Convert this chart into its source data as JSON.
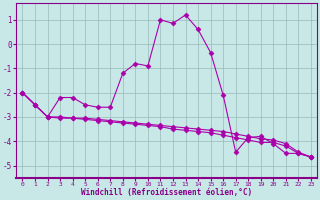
{
  "xlabel": "Windchill (Refroidissement éolien,°C)",
  "ylabel": "",
  "bg_color": "#c8e8e8",
  "grid_color": "#9ababa",
  "line_color": "#aa00aa",
  "spine_color": "#880088",
  "tick_color": "#880088",
  "label_color": "#880088",
  "xlim": [
    -0.5,
    23.5
  ],
  "ylim": [
    -5.5,
    1.7
  ],
  "yticks": [
    -5,
    -4,
    -3,
    -2,
    -1,
    0,
    1
  ],
  "xticks": [
    0,
    1,
    2,
    3,
    4,
    5,
    6,
    7,
    8,
    9,
    10,
    11,
    12,
    13,
    14,
    15,
    16,
    17,
    18,
    19,
    20,
    21,
    22,
    23
  ],
  "line1_x": [
    0,
    1,
    2,
    3,
    4,
    5,
    6,
    7,
    8,
    9,
    10,
    11,
    12,
    13,
    14,
    15,
    16,
    17,
    18,
    19,
    20,
    21,
    22,
    23
  ],
  "line1_y": [
    -2.0,
    -2.5,
    -3.0,
    -2.2,
    -2.2,
    -2.5,
    -2.6,
    -2.6,
    -1.2,
    -0.8,
    -0.9,
    1.0,
    0.85,
    1.2,
    0.6,
    -0.35,
    -2.1,
    -4.45,
    -3.85,
    -3.8,
    -4.1,
    -4.5,
    -4.5,
    -4.65
  ],
  "line2_x": [
    0,
    1,
    2,
    3,
    4,
    5,
    6,
    7,
    8,
    9,
    10,
    11,
    12,
    13,
    14,
    15,
    16,
    17,
    18,
    19,
    20,
    21,
    22,
    23
  ],
  "line2_y": [
    -2.0,
    -2.5,
    -3.0,
    -3.0,
    -3.05,
    -3.05,
    -3.1,
    -3.15,
    -3.2,
    -3.25,
    -3.3,
    -3.35,
    -3.4,
    -3.45,
    -3.5,
    -3.55,
    -3.6,
    -3.7,
    -3.8,
    -3.9,
    -3.95,
    -4.1,
    -4.45,
    -4.65
  ],
  "line3_x": [
    0,
    1,
    2,
    3,
    4,
    5,
    6,
    7,
    8,
    9,
    10,
    11,
    12,
    13,
    14,
    15,
    16,
    17,
    18,
    19,
    20,
    21,
    22,
    23
  ],
  "line3_y": [
    -2.0,
    -2.5,
    -3.0,
    -3.05,
    -3.05,
    -3.1,
    -3.15,
    -3.2,
    -3.25,
    -3.3,
    -3.35,
    -3.4,
    -3.5,
    -3.55,
    -3.6,
    -3.65,
    -3.75,
    -3.85,
    -3.95,
    -4.05,
    -4.05,
    -4.2,
    -4.5,
    -4.65
  ],
  "marker": "D",
  "markersize": 2.5,
  "linewidth": 0.8
}
